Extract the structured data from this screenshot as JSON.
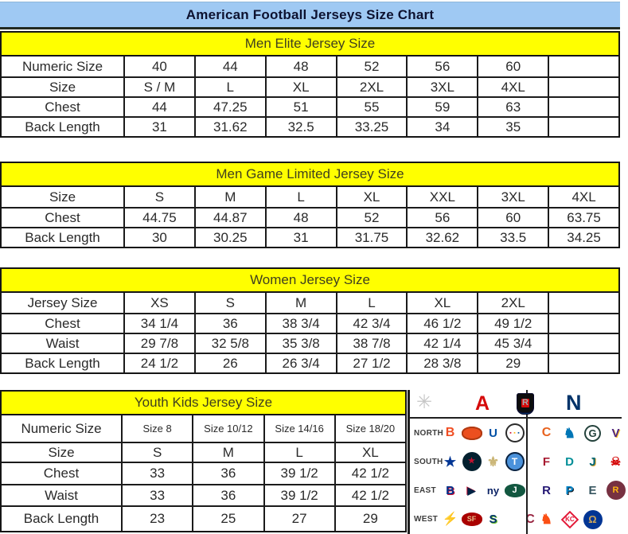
{
  "title": "American Football Jerseys Size Chart",
  "tables": [
    {
      "header": "Men Elite Jersey Size",
      "rows": [
        {
          "label": "Numeric Size",
          "cells": [
            "40",
            "44",
            "48",
            "52",
            "56",
            "60",
            ""
          ]
        },
        {
          "label": "Size",
          "cells": [
            "S / M",
            "L",
            "XL",
            "2XL",
            "3XL",
            "4XL",
            ""
          ]
        },
        {
          "label": "Chest",
          "cells": [
            "44",
            "47.25",
            "51",
            "55",
            "59",
            "63",
            ""
          ]
        },
        {
          "label": "Back Length",
          "cells": [
            "31",
            "31.62",
            "32.5",
            "33.25",
            "34",
            "35",
            ""
          ]
        }
      ]
    },
    {
      "header": "Men Game Limited Jersey Size",
      "rows": [
        {
          "label": "Size",
          "cells": [
            "S",
            "M",
            "L",
            "XL",
            "XXL",
            "3XL",
            "4XL"
          ]
        },
        {
          "label": "Chest",
          "cells": [
            "44.75",
            "44.87",
            "48",
            "52",
            "56",
            "60",
            "63.75"
          ]
        },
        {
          "label": "Back Length",
          "cells": [
            "30",
            "30.25",
            "31",
            "31.75",
            "32.62",
            "33.5",
            "34.25"
          ]
        }
      ]
    },
    {
      "header": "Women Jersey Size",
      "rows": [
        {
          "label": "Jersey Size",
          "cells": [
            "XS",
            "S",
            "M",
            "L",
            "XL",
            "2XL",
            ""
          ]
        },
        {
          "label": "Chest",
          "cells": [
            "34 1/4",
            "36",
            "38 3/4",
            "42 3/4",
            "46 1/2",
            "49 1/2",
            ""
          ]
        },
        {
          "label": "Waist",
          "cells": [
            "29 7/8",
            "32 5/8",
            "35 3/8",
            "38 7/8",
            "42 1/4",
            "45 3/4",
            ""
          ]
        },
        {
          "label": "Back Length",
          "cells": [
            "24 1/2",
            "26",
            "26 3/4",
            "27 1/2",
            "28 3/8",
            "29",
            ""
          ]
        }
      ]
    },
    {
      "header": "Youth Kids Jersey Size",
      "rows": [
        {
          "label": "Numeric Size",
          "cells": [
            "Size 8",
            "Size 10/12",
            "Size 14/16",
            "Size 18/20"
          ]
        },
        {
          "label": "Size",
          "cells": [
            "S",
            "M",
            "L",
            "XL"
          ]
        },
        {
          "label": "Chest",
          "cells": [
            "33",
            "36",
            "39 1/2",
            "42 1/2"
          ]
        },
        {
          "label": "Waist",
          "cells": [
            "33",
            "36",
            "39 1/2",
            "42 1/2"
          ]
        },
        {
          "label": "Back Length",
          "cells": [
            "23",
            "25",
            "27",
            "29"
          ]
        }
      ]
    }
  ],
  "colors": {
    "title_bg": "#9fc9f3",
    "section_header_bg": "#ffff00",
    "border": "#1b1b1b",
    "afc_red": "#d50a0a",
    "nfc_blue": "#013369"
  },
  "nfl_panel": {
    "header": {
      "left_icon": "starburst",
      "afc_label": "A",
      "nfl_label": "NFL",
      "nfc_label": "N"
    },
    "rows": [
      {
        "label": "NORTH",
        "afc": [
          "bengals",
          "browns",
          "colts",
          "steelers"
        ],
        "nfc": [
          "bears",
          "lions",
          "packers",
          "vikings"
        ]
      },
      {
        "label": "SOUTH",
        "afc": [
          "cowboys",
          "texans",
          "saints",
          "titans"
        ],
        "nfc": [
          "falcons",
          "dolphins",
          "jaguars",
          "buccaneers"
        ]
      },
      {
        "label": "EAST",
        "afc": [
          "bills",
          "patriots",
          "giants",
          "jets"
        ],
        "nfc": [
          "ravens",
          "panthers",
          "eagles",
          "redskins"
        ]
      },
      {
        "label": "WEST",
        "afc": [
          "raiders",
          "chargers",
          "49ers",
          "seahawks"
        ],
        "nfc": [
          "cardinals",
          "broncos",
          "chiefs",
          "rams"
        ]
      }
    ],
    "teams": {
      "bengals": {
        "glyph": "B",
        "fg": "#f04e23",
        "size": 16
      },
      "browns": {
        "glyph": "",
        "fg": "#fff",
        "bg": "#ec4f1f",
        "shape": "oval",
        "border": "#b03a12"
      },
      "colts": {
        "glyph": "U",
        "fg": "#0050a5",
        "size": 15
      },
      "steelers": {
        "glyph": "▪",
        "fg": "#ffb612",
        "bg": "#ffffff",
        "shape": "circle",
        "border": "#2b2b2b",
        "size": 7,
        "shadow": "-5px 0 0 #c60c30, 5px 0 0 #00539b"
      },
      "bears": {
        "glyph": "C",
        "fg": "#e8621e",
        "size": 16
      },
      "lions": {
        "glyph": "♞",
        "fg": "#0076b6",
        "size": 17
      },
      "packers": {
        "glyph": "G",
        "fg": "#24423c",
        "shape": "ring",
        "border": "#24423c",
        "size": 13
      },
      "vikings": {
        "glyph": "V",
        "fg": "#4f2683",
        "size": 15,
        "shadow": "1px 1px 0 #ffc62f"
      },
      "cowboys": {
        "glyph": "★",
        "fg": "#003594",
        "size": 17
      },
      "texans": {
        "glyph": "★",
        "fg": "#c41230",
        "bg": "#03202f",
        "shape": "circle",
        "size": 10
      },
      "saints": {
        "glyph": "⚜",
        "fg": "#cbb677",
        "size": 17
      },
      "titans": {
        "glyph": "T",
        "fg": "#ffffff",
        "bg": "#4b92db",
        "shape": "circle",
        "border": "#0c2340",
        "size": 12
      },
      "falcons": {
        "glyph": "F",
        "fg": "#a71930",
        "size": 15
      },
      "dolphins": {
        "glyph": "D",
        "fg": "#008e97",
        "size": 15
      },
      "jaguars": {
        "glyph": "J",
        "fg": "#006778",
        "size": 15,
        "shadow": "1px 1px 0 #d7a22a"
      },
      "buccaneers": {
        "glyph": "☠",
        "fg": "#d50a0a",
        "size": 15
      },
      "bills": {
        "glyph": "B",
        "fg": "#00338d",
        "size": 15,
        "shadow": "1px 1px 0 #c60c30"
      },
      "patriots": {
        "glyph": "▶",
        "fg": "#002244",
        "size": 13,
        "shadow": "-1px -1px 0 #c60c30"
      },
      "giants": {
        "glyph": "ny",
        "fg": "#0b2265",
        "size": 13
      },
      "jets": {
        "glyph": "J",
        "fg": "#ffffff",
        "bg": "#125740",
        "shape": "oval",
        "size": 11
      },
      "ravens": {
        "glyph": "R",
        "fg": "#241773",
        "size": 15
      },
      "panthers": {
        "glyph": "P",
        "fg": "#0085ca",
        "size": 15,
        "shadow": "1px 1px 0 #101820"
      },
      "eagles": {
        "glyph": "E",
        "fg": "#36555f",
        "size": 15
      },
      "redskins": {
        "glyph": "R",
        "fg": "#ffb612",
        "bg": "#773141",
        "shape": "circle",
        "size": 11
      },
      "raiders": {
        "glyph": "R",
        "fg": "#a5acaf",
        "bg": "#0d0d0d",
        "shape": "shield",
        "size": 11
      },
      "chargers": {
        "glyph": "⚡",
        "fg": "#f2a900",
        "size": 16
      },
      "49ers": {
        "glyph": "SF",
        "fg": "#e6be8a",
        "bg": "#aa0000",
        "shape": "oval",
        "size": 9
      },
      "seahawks": {
        "glyph": "S",
        "fg": "#013369",
        "size": 15,
        "shadow": "1px 1px 0 #69be28"
      },
      "cardinals": {
        "glyph": "C",
        "fg": "#97233f",
        "size": 16
      },
      "broncos": {
        "glyph": "♞",
        "fg": "#fb4f14",
        "size": 17
      },
      "chiefs": {
        "glyph": "KC",
        "fg": "#e31837",
        "bg": "#ffffff",
        "shape": "diamond",
        "border": "#e31837",
        "size": 8
      },
      "rams": {
        "glyph": "Ω",
        "fg": "#c8a35c",
        "bg": "#013594",
        "shape": "circle",
        "size": 13
      }
    }
  }
}
